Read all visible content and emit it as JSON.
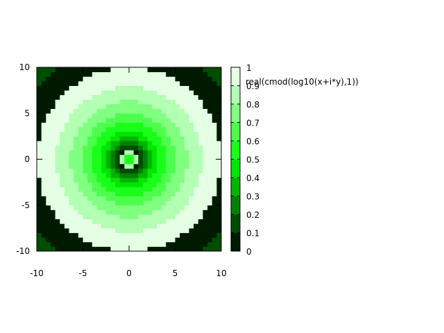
{
  "chart_data": {
    "type": "heatmap",
    "title": "",
    "legend_label": "real(cmod(log10(x+i*y),1))",
    "legend_placement": "right",
    "xlim": [
      -10,
      10
    ],
    "ylim": [
      -10,
      10
    ],
    "x_ticks": [
      -10,
      -5,
      0,
      5,
      10
    ],
    "y_ticks": [
      -10,
      -5,
      0,
      5,
      10
    ],
    "x_tick_labels": [
      "-10",
      "-5",
      "0",
      "5",
      "10"
    ],
    "y_tick_labels": [
      "-10",
      "-5",
      "0",
      "5",
      "10"
    ],
    "colorbar_ticks": [
      0,
      0.1,
      0.2,
      0.3,
      0.4,
      0.5,
      0.6,
      0.7,
      0.8,
      0.9,
      1
    ],
    "colorbar_tick_labels": [
      "0",
      "0.1",
      "0.2",
      "0.3",
      "0.4",
      "0.5",
      "0.6",
      "0.7",
      "0.8",
      "0.9",
      "1"
    ],
    "colorbar_range": [
      0,
      1
    ],
    "color_levels": 10,
    "grid_samples": 40,
    "colormap": {
      "low": "#000000",
      "mid": "#00ff00",
      "high": "#ffffff"
    },
    "function": "real(cmod(log10(x+i*y),1)) = fractional part of log10(sqrt(x^2+y^2))"
  }
}
